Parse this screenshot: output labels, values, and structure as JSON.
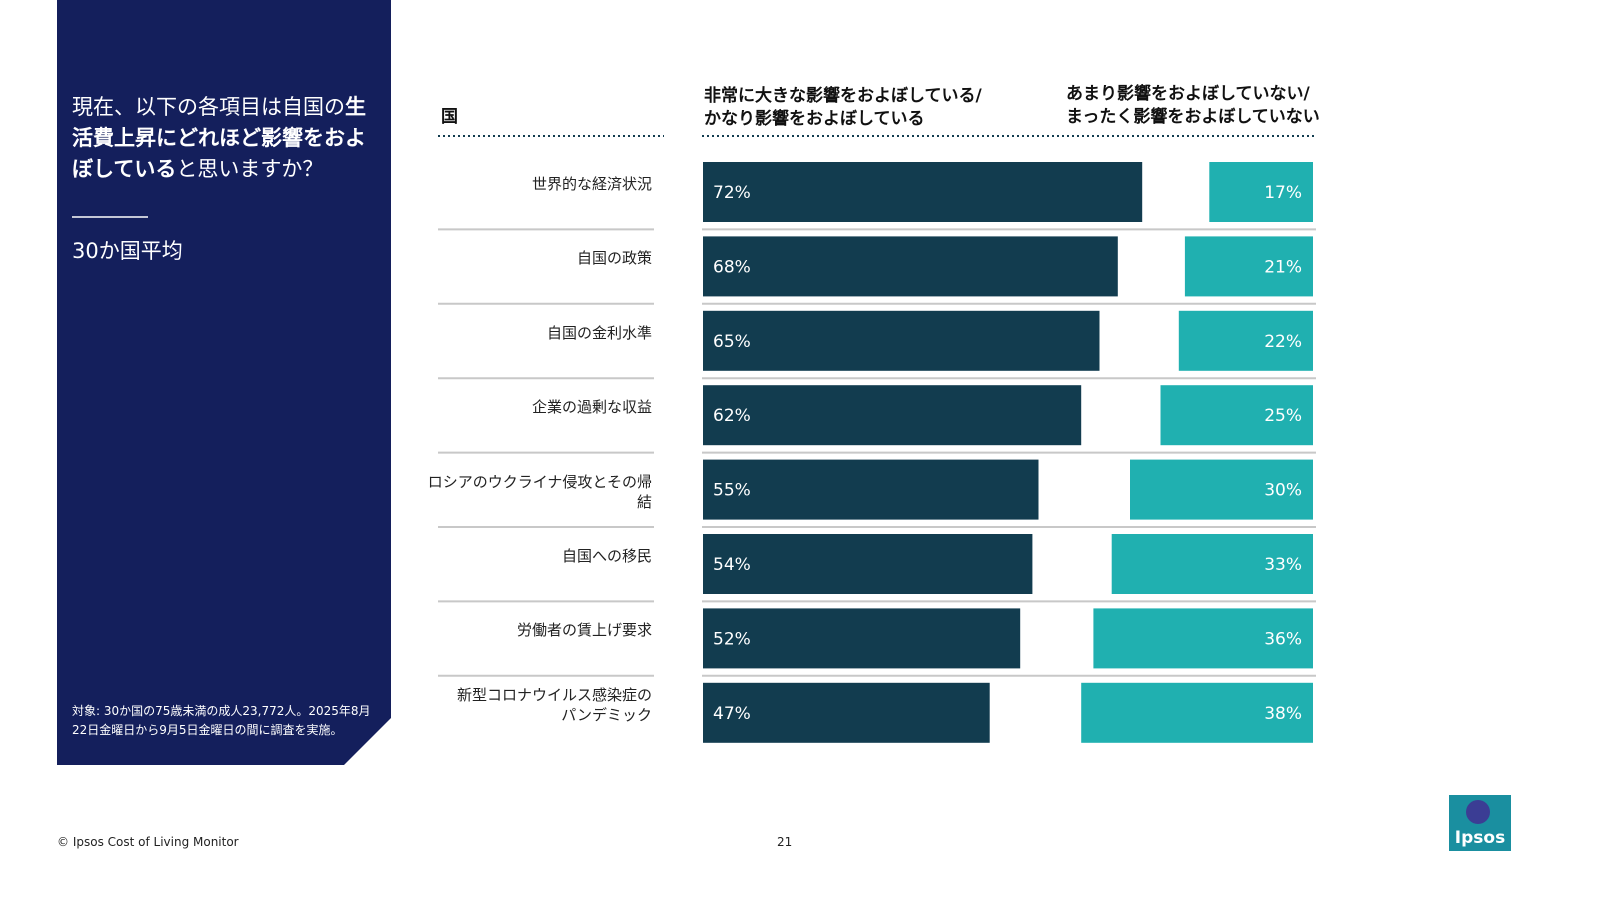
{
  "panel": {
    "question_prefix": "現在、以下の各項目は自国の",
    "question_bold": "生活費上昇にどれほど影響をおよぼしている",
    "question_suffix": "と思いますか？",
    "subtitle": "30か国平均",
    "footnote": "対象: 30か国の75歳未満の成人23,772人。2025年8月22日金曜日から9月5日金曜日の間に調査を実施。"
  },
  "chart_data": {
    "type": "bar",
    "category_header": "国",
    "categories": [
      "世界的な経済状況",
      "自国の政策",
      "自国の金利水準",
      "企業の過剰な収益",
      "ロシアのウクライナ侵攻とその帰結",
      "自国への移民",
      "労働者の賃上げ要求",
      "新型コロナウイルス感染症の\nパンデミック"
    ],
    "series": [
      {
        "name": "非常に大きな影響をおよぼしている/\nかなり影響をおよぼしている",
        "color": "#123c4f",
        "values": [
          72,
          68,
          65,
          62,
          55,
          54,
          52,
          47
        ],
        "value_labels": [
          "72%",
          "68%",
          "65%",
          "62%",
          "55%",
          "54%",
          "52%",
          "47%"
        ]
      },
      {
        "name": "あまり影響をおよぼしていない/\nまったく影響をおよぼしていない",
        "color": "#20b0b0",
        "values": [
          17,
          21,
          22,
          25,
          30,
          33,
          36,
          38
        ],
        "value_labels": [
          "17%",
          "21%",
          "22%",
          "25%",
          "30%",
          "33%",
          "36%",
          "38%"
        ]
      }
    ]
  },
  "footer": {
    "copyright": "© Ipsos Cost of Living Monitor",
    "page_number": "21",
    "logo": "Ipsos"
  }
}
